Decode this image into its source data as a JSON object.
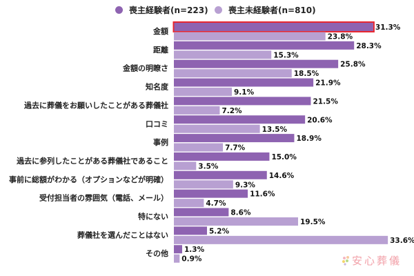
{
  "chart_data": {
    "type": "bar",
    "orientation": "horizontal",
    "title": "",
    "xlabel": "",
    "ylabel": "",
    "xlim": [
      0,
      35
    ],
    "grid": false,
    "legend_position": "top",
    "value_suffix": "%",
    "categories": [
      "金額",
      "距離",
      "金額の明瞭さ",
      "知名度",
      "過去に葬儀をお願いしたことがある葬儀社",
      "口コミ",
      "事例",
      "過去に参列したことがある葬儀社であること",
      "事前に総額がわかる（オプションなどが明確）",
      "受付担当者の雰囲気（電話、メール）",
      "特にない",
      "葬儀社を選んだことはない",
      "その他"
    ],
    "series": [
      {
        "name": "喪主経験者(n=223)",
        "color": "#8e63b1",
        "values": [
          31.3,
          28.3,
          25.8,
          21.9,
          21.5,
          20.6,
          18.9,
          15.0,
          14.6,
          11.6,
          8.6,
          5.2,
          1.3
        ],
        "labels": [
          "31.3%",
          "28.3%",
          "25.8%",
          "21.9%",
          "21.5%",
          "20.6%",
          "18.9%",
          "15.0%",
          "14.6%",
          "11.6%",
          "8.6%",
          "5.2%",
          "1.3%"
        ]
      },
      {
        "name": "喪主未経験者(n=810)",
        "color": "#b8a0d2",
        "values": [
          23.8,
          15.3,
          18.5,
          9.1,
          7.2,
          13.5,
          7.7,
          3.5,
          9.3,
          4.7,
          19.5,
          33.6,
          0.9
        ],
        "labels": [
          "23.8%",
          "15.3%",
          "18.5%",
          "9.1%",
          "7.2%",
          "13.5%",
          "7.7%",
          "3.5%",
          "9.3%",
          "4.7%",
          "19.5%",
          "33.6%",
          "0.9%"
        ]
      }
    ],
    "highlight": {
      "series": 0,
      "category": 0,
      "color": "#e8262f"
    }
  },
  "watermark": {
    "text": "安心葬儀",
    "color": "#f2a0a8"
  }
}
